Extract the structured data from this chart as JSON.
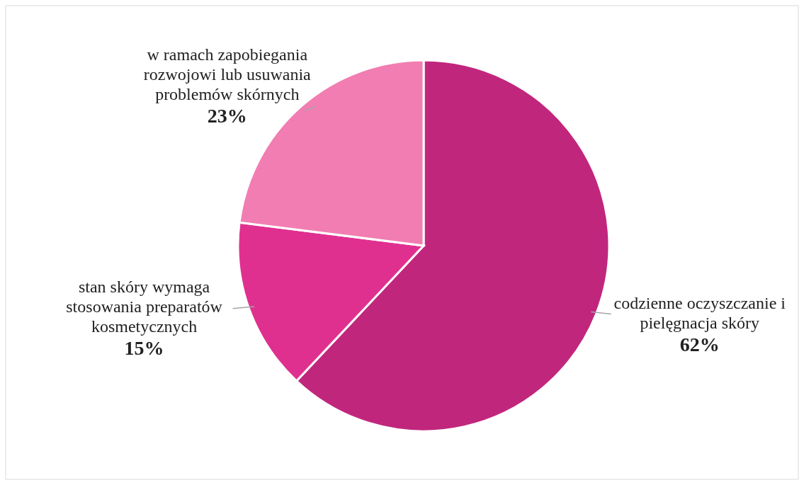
{
  "chart_data": {
    "type": "pie",
    "categories": [
      "codzienne oczyszczanie  i pielęgnacja skóry",
      "stan skóry wymaga stosowania preparatów kosmetycznych",
      "w ramach zapobiegania rozwojowi lub usuwania problemów skórnych"
    ],
    "values": [
      62,
      15,
      23
    ],
    "colors": [
      "#c1267d",
      "#e0308f",
      "#f17db2"
    ],
    "value_labels": [
      "62%",
      "15%",
      "23%"
    ]
  }
}
